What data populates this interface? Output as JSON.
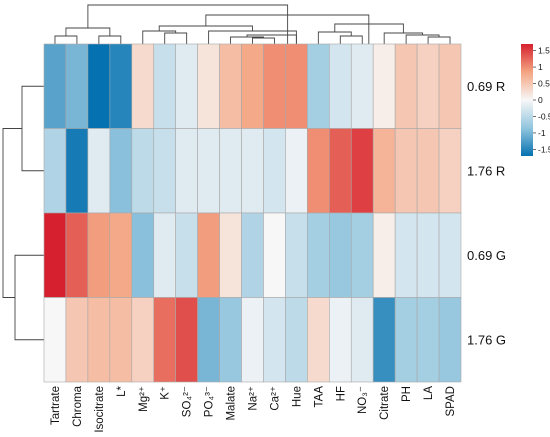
{
  "chart_data": {
    "type": "heatmap",
    "columns": [
      "Tartrate",
      "Chroma",
      "Isocitrate",
      "L*",
      "Mg²⁺",
      "K⁺",
      "SO₄²⁻",
      "PO₄³⁻",
      "Malate",
      "Na²⁺",
      "Ca²⁺",
      "Hue",
      "TAA",
      "HF",
      "NO₃⁻",
      "Citrate",
      "PH",
      "LA",
      "SPAD"
    ],
    "rows": [
      "0.69 R",
      "1.76 R",
      "0.69 G",
      "1.76 G"
    ],
    "values": [
      [
        -1.2,
        -1.0,
        -1.7,
        -1.5,
        0.3,
        -0.4,
        -0.2,
        0.2,
        0.6,
        0.8,
        1.0,
        1.0,
        -0.7,
        -0.3,
        -0.2,
        0.1,
        0.5,
        0.4,
        0.5
      ],
      [
        -0.6,
        -1.6,
        -0.2,
        -0.9,
        -0.5,
        -0.4,
        -0.2,
        -0.2,
        -0.2,
        -0.2,
        -0.3,
        -0.1,
        1.0,
        1.3,
        1.5,
        0.7,
        0.5,
        0.5,
        0.4
      ],
      [
        1.7,
        1.3,
        0.9,
        0.8,
        -0.9,
        -0.2,
        -0.4,
        0.9,
        0.2,
        -0.6,
        0.0,
        -0.4,
        -0.7,
        -0.8,
        -0.7,
        0.1,
        -0.3,
        -0.3,
        -0.3
      ],
      [
        0.0,
        0.5,
        0.6,
        0.6,
        0.4,
        1.2,
        1.4,
        -1.0,
        -0.8,
        -0.1,
        -0.3,
        -0.5,
        0.3,
        -0.1,
        -0.2,
        -1.4,
        -0.7,
        -0.7,
        -0.8
      ]
    ],
    "color_scale": {
      "min": -1.7,
      "max": 1.7,
      "low": "#2166ac",
      "mid": "#f7f7f7",
      "high": "#d6202f"
    },
    "legend_ticks": [
      "1.5",
      "1",
      "0.5",
      "0",
      "-0.5",
      "-1",
      "-1.5"
    ],
    "legend_tick_values": [
      1.5,
      1,
      0.5,
      0,
      -0.5,
      -1,
      -1.5
    ],
    "legend": "right",
    "row_dendrogram": true,
    "column_dendrogram": true
  }
}
